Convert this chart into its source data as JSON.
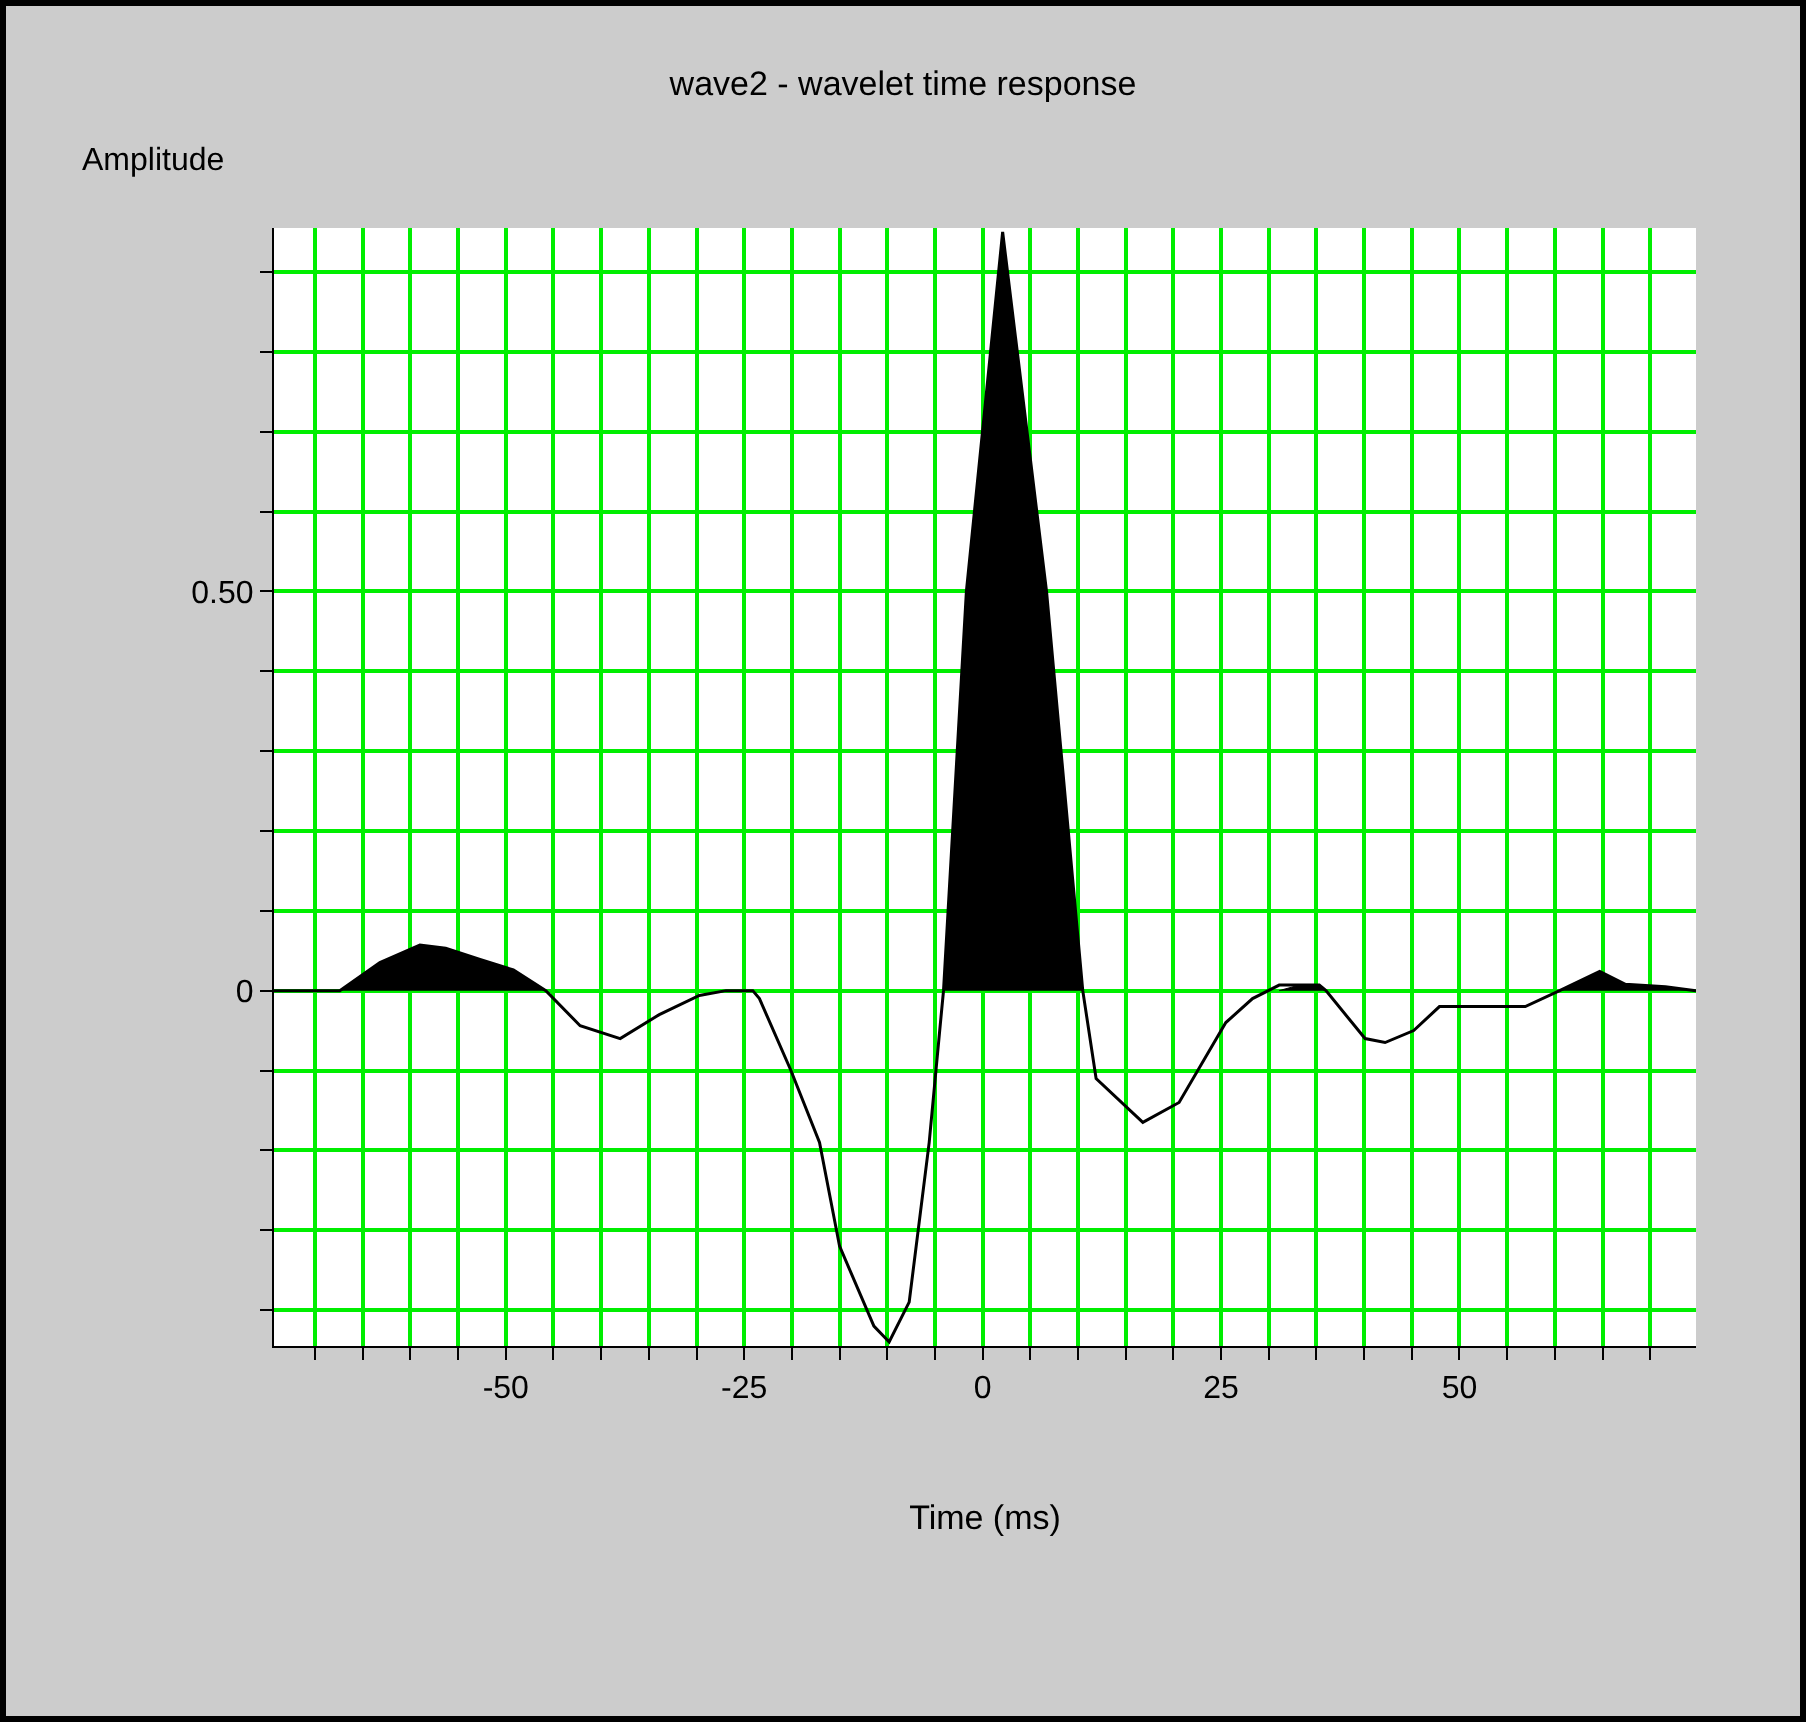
{
  "chart_data": {
    "type": "line",
    "title": "wave2 - wavelet time response",
    "xlabel": "Time (ms)",
    "ylabel": "Amplitude",
    "xlim": [
      -74.3,
      74.8
    ],
    "ylim": [
      -0.445,
      0.955
    ],
    "xticks": [
      {
        "value": -70,
        "label": null
      },
      {
        "value": -65,
        "label": null
      },
      {
        "value": -60,
        "label": null
      },
      {
        "value": -55,
        "label": null
      },
      -50,
      {
        "value": -45,
        "label": null
      },
      {
        "value": -40,
        "label": null
      },
      {
        "value": -35,
        "label": null
      },
      {
        "value": -30,
        "label": null
      },
      -25,
      {
        "value": -20,
        "label": null
      },
      {
        "value": -15,
        "label": null
      },
      {
        "value": -10,
        "label": null
      },
      {
        "value": -5,
        "label": null
      },
      0,
      {
        "value": 5,
        "label": null
      },
      {
        "value": 10,
        "label": null
      },
      {
        "value": 15,
        "label": null
      },
      {
        "value": 20,
        "label": null
      },
      25,
      {
        "value": 30,
        "label": null
      },
      {
        "value": 35,
        "label": null
      },
      {
        "value": 40,
        "label": null
      },
      {
        "value": 45,
        "label": null
      },
      50,
      {
        "value": 55,
        "label": null
      },
      {
        "value": 60,
        "label": null
      },
      {
        "value": 65,
        "label": null
      },
      {
        "value": 70,
        "label": null
      }
    ],
    "yticks": [
      {
        "value": -0.4,
        "label": null
      },
      {
        "value": -0.3,
        "label": null
      },
      {
        "value": -0.2,
        "label": null
      },
      {
        "value": -0.1,
        "label": null
      },
      0,
      {
        "value": 0.1,
        "label": null
      },
      {
        "value": 0.2,
        "label": null
      },
      {
        "value": 0.3,
        "label": null
      },
      {
        "value": 0.4,
        "label": null
      },
      {
        "value": 0.5,
        "label": "0.50"
      },
      {
        "value": 0.6,
        "label": null
      },
      {
        "value": 0.7,
        "label": null
      },
      {
        "value": 0.8,
        "label": null
      },
      {
        "value": 0.9,
        "label": null
      }
    ],
    "grid": true,
    "marker": "none",
    "line_style": "solid",
    "series": [
      {
        "type": "area",
        "color": "#000000",
        "x": [
          -67.4,
          -63.2,
          -59,
          -56.3,
          -52.7,
          -49.2,
          -45.8,
          null,
          -4.1,
          -1.7,
          2.1,
          6.7,
          10.5,
          null,
          31.1,
          33.2,
          35.3,
          36,
          null,
          60.5,
          64.7,
          67.4,
          71.6,
          74.8
        ],
        "values": [
          0,
          0.035,
          0.057,
          0.053,
          0.039,
          0.026,
          0,
          null,
          0,
          0.5,
          0.95,
          0.5,
          0,
          null,
          0,
          0.007,
          0.007,
          0,
          null,
          0,
          0.024,
          0.008,
          0.005,
          0
        ]
      },
      {
        "color": "#000000",
        "x": [
          -74.3,
          -67.4,
          -63.2,
          -59,
          -56.3,
          -52.7,
          -49.2,
          -45.8,
          -42.2,
          -38,
          -33.9,
          -29.7,
          -26.9,
          -24.1,
          -23.4,
          -20.1,
          -17.1,
          -15,
          -11.4,
          -9.8,
          -7.7,
          -5.6,
          -4.5,
          -4.1,
          -1.7,
          2.1,
          6.7,
          10.5,
          11.9,
          16.8,
          20.6,
          25.5,
          28.3,
          31.1,
          33.2,
          35.3,
          36,
          40.1,
          42.2,
          45.2,
          47.9,
          56.9,
          60.5,
          64.7,
          67.4,
          71.6,
          74.8
        ],
        "values": [
          0,
          0,
          0.035,
          0.057,
          0.053,
          0.039,
          0.026,
          0,
          -0.044,
          -0.06,
          -0.03,
          -0.006,
          0,
          0,
          -0.01,
          -0.1,
          -0.19,
          -0.32,
          -0.42,
          -0.44,
          -0.39,
          -0.19,
          -0.05,
          0,
          0.5,
          0.95,
          0.5,
          0,
          -0.11,
          -0.165,
          -0.14,
          -0.04,
          -0.01,
          0.007,
          0.007,
          0.007,
          0,
          -0.06,
          -0.065,
          -0.05,
          -0.02,
          -0.02,
          0,
          0.024,
          0.008,
          0.005,
          0
        ]
      }
    ]
  }
}
